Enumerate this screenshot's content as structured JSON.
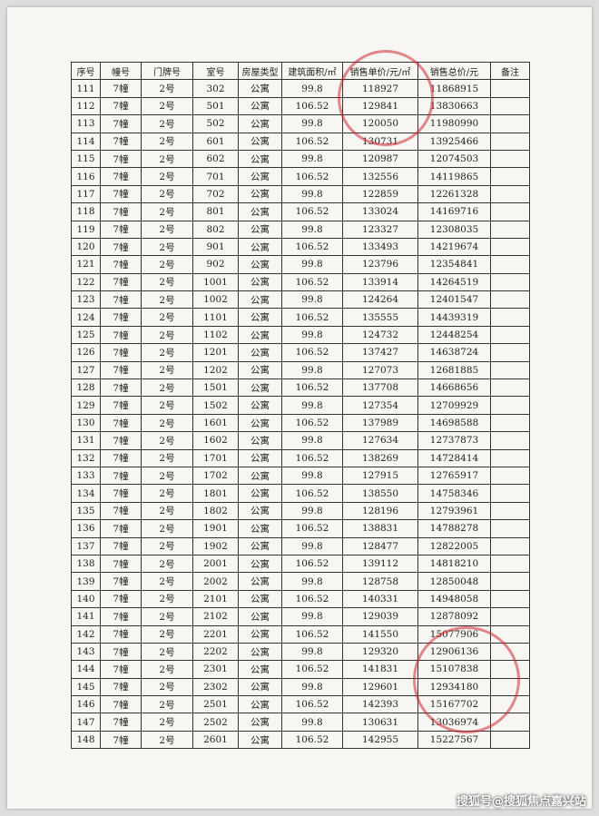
{
  "table": {
    "header": [
      "序号",
      "幢号",
      "门牌号",
      "室号",
      "房屋类型",
      "建筑面积/㎡",
      "销售单价/元/㎡",
      "销售总价/元",
      "备注"
    ],
    "rows": [
      [
        "111",
        "7幢",
        "2号",
        "302",
        "公寓",
        "99.8",
        "118927",
        "11868915",
        ""
      ],
      [
        "112",
        "7幢",
        "2号",
        "501",
        "公寓",
        "106.52",
        "129841",
        "13830663",
        ""
      ],
      [
        "113",
        "7幢",
        "2号",
        "502",
        "公寓",
        "99.8",
        "120050",
        "11980990",
        ""
      ],
      [
        "114",
        "7幢",
        "2号",
        "601",
        "公寓",
        "106.52",
        "130731",
        "13925466",
        ""
      ],
      [
        "115",
        "7幢",
        "2号",
        "602",
        "公寓",
        "99.8",
        "120987",
        "12074503",
        ""
      ],
      [
        "116",
        "7幢",
        "2号",
        "701",
        "公寓",
        "106.52",
        "132556",
        "14119865",
        ""
      ],
      [
        "117",
        "7幢",
        "2号",
        "702",
        "公寓",
        "99.8",
        "122859",
        "12261328",
        ""
      ],
      [
        "118",
        "7幢",
        "2号",
        "801",
        "公寓",
        "106.52",
        "133024",
        "14169716",
        ""
      ],
      [
        "119",
        "7幢",
        "2号",
        "802",
        "公寓",
        "99.8",
        "123327",
        "12308035",
        ""
      ],
      [
        "120",
        "7幢",
        "2号",
        "901",
        "公寓",
        "106.52",
        "133493",
        "14219674",
        ""
      ],
      [
        "121",
        "7幢",
        "2号",
        "902",
        "公寓",
        "99.8",
        "123796",
        "12354841",
        ""
      ],
      [
        "122",
        "7幢",
        "2号",
        "1001",
        "公寓",
        "106.52",
        "133914",
        "14264519",
        ""
      ],
      [
        "123",
        "7幢",
        "2号",
        "1002",
        "公寓",
        "99.8",
        "124264",
        "12401547",
        ""
      ],
      [
        "124",
        "7幢",
        "2号",
        "1101",
        "公寓",
        "106.52",
        "135555",
        "14439319",
        ""
      ],
      [
        "125",
        "7幢",
        "2号",
        "1102",
        "公寓",
        "99.8",
        "124732",
        "12448254",
        ""
      ],
      [
        "126",
        "7幢",
        "2号",
        "1201",
        "公寓",
        "106.52",
        "137427",
        "14638724",
        ""
      ],
      [
        "127",
        "7幢",
        "2号",
        "1202",
        "公寓",
        "99.8",
        "127073",
        "12681885",
        ""
      ],
      [
        "128",
        "7幢",
        "2号",
        "1501",
        "公寓",
        "106.52",
        "137708",
        "14668656",
        ""
      ],
      [
        "129",
        "7幢",
        "2号",
        "1502",
        "公寓",
        "99.8",
        "127354",
        "12709929",
        ""
      ],
      [
        "130",
        "7幢",
        "2号",
        "1601",
        "公寓",
        "106.52",
        "137989",
        "14698588",
        ""
      ],
      [
        "131",
        "7幢",
        "2号",
        "1602",
        "公寓",
        "99.8",
        "127634",
        "12737873",
        ""
      ],
      [
        "132",
        "7幢",
        "2号",
        "1701",
        "公寓",
        "106.52",
        "138269",
        "14728414",
        ""
      ],
      [
        "133",
        "7幢",
        "2号",
        "1702",
        "公寓",
        "99.8",
        "127915",
        "12765917",
        ""
      ],
      [
        "134",
        "7幢",
        "2号",
        "1801",
        "公寓",
        "106.52",
        "138550",
        "14758346",
        ""
      ],
      [
        "135",
        "7幢",
        "2号",
        "1802",
        "公寓",
        "99.8",
        "128196",
        "12793961",
        ""
      ],
      [
        "136",
        "7幢",
        "2号",
        "1901",
        "公寓",
        "106.52",
        "138831",
        "14788278",
        ""
      ],
      [
        "137",
        "7幢",
        "2号",
        "1902",
        "公寓",
        "99.8",
        "128477",
        "12822005",
        ""
      ],
      [
        "138",
        "7幢",
        "2号",
        "2001",
        "公寓",
        "106.52",
        "139112",
        "14818210",
        ""
      ],
      [
        "139",
        "7幢",
        "2号",
        "2002",
        "公寓",
        "99.8",
        "128758",
        "12850048",
        ""
      ],
      [
        "140",
        "7幢",
        "2号",
        "2101",
        "公寓",
        "106.52",
        "140331",
        "14948058",
        ""
      ],
      [
        "141",
        "7幢",
        "2号",
        "2102",
        "公寓",
        "99.8",
        "129039",
        "12878092",
        ""
      ],
      [
        "142",
        "7幢",
        "2号",
        "2201",
        "公寓",
        "106.52",
        "141550",
        "15077906",
        ""
      ],
      [
        "143",
        "7幢",
        "2号",
        "2202",
        "公寓",
        "99.8",
        "129320",
        "12906136",
        ""
      ],
      [
        "144",
        "7幢",
        "2号",
        "2301",
        "公寓",
        "106.52",
        "141831",
        "15107838",
        ""
      ],
      [
        "145",
        "7幢",
        "2号",
        "2302",
        "公寓",
        "99.8",
        "129601",
        "12934180",
        ""
      ],
      [
        "146",
        "7幢",
        "2号",
        "2501",
        "公寓",
        "106.52",
        "142393",
        "15167702",
        ""
      ],
      [
        "147",
        "7幢",
        "2号",
        "2502",
        "公寓",
        "99.8",
        "130631",
        "13036974",
        ""
      ],
      [
        "148",
        "7幢",
        "2号",
        "2601",
        "公寓",
        "106.52",
        "142955",
        "15227567",
        ""
      ]
    ]
  },
  "watermark": "搜狐号@搜狐焦点嘉兴站"
}
